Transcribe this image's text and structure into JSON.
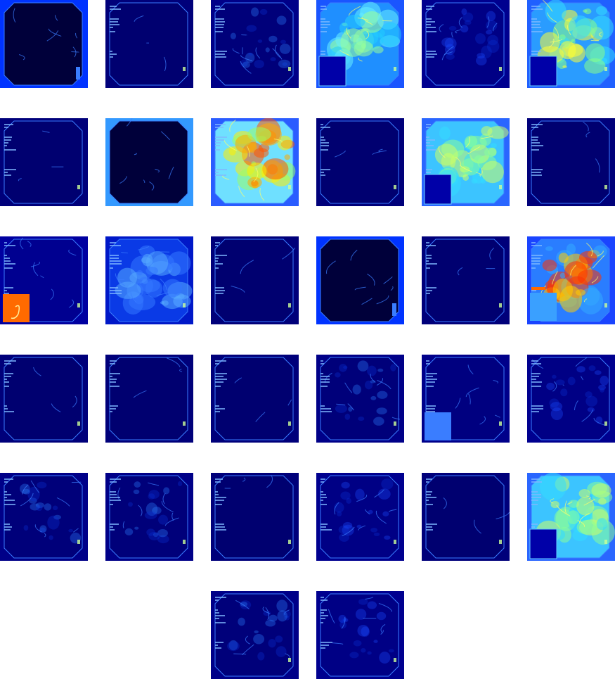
{
  "grid": {
    "rows": 6,
    "columns": 6,
    "tile_count": 32,
    "colormap": "jet"
  },
  "tiles": [
    {
      "index": 1,
      "variant": "black-frame"
    },
    {
      "index": 2,
      "variant": "dark-minimal"
    },
    {
      "index": 3,
      "variant": "dark-edges"
    },
    {
      "index": 4,
      "variant": "bright-cyan"
    },
    {
      "index": 5,
      "variant": "dark-textured"
    },
    {
      "index": 6,
      "variant": "bright-green-yellow"
    },
    {
      "index": 7,
      "variant": "dark-minimal"
    },
    {
      "index": 8,
      "variant": "black-frame-light"
    },
    {
      "index": 9,
      "variant": "hot-yellow-red"
    },
    {
      "index": 10,
      "variant": "dark-minimal"
    },
    {
      "index": 11,
      "variant": "bright-cyan-green"
    },
    {
      "index": 12,
      "variant": "dark-minimal"
    },
    {
      "index": 13,
      "variant": "dark-orange-inset"
    },
    {
      "index": 14,
      "variant": "mid-blue-textured"
    },
    {
      "index": 15,
      "variant": "dark-minimal"
    },
    {
      "index": 16,
      "variant": "black-frame"
    },
    {
      "index": 17,
      "variant": "dark-minimal"
    },
    {
      "index": 18,
      "variant": "bright-blue-hotspots"
    },
    {
      "index": 19,
      "variant": "dark-minimal"
    },
    {
      "index": 20,
      "variant": "dark-minimal"
    },
    {
      "index": 21,
      "variant": "dark-minimal"
    },
    {
      "index": 22,
      "variant": "dark-edges"
    },
    {
      "index": 23,
      "variant": "dark-blue-inset"
    },
    {
      "index": 24,
      "variant": "dark-textured"
    },
    {
      "index": 25,
      "variant": "dark-edges"
    },
    {
      "index": 26,
      "variant": "dark-edges"
    },
    {
      "index": 27,
      "variant": "dark-minimal"
    },
    {
      "index": 28,
      "variant": "dark-textured"
    },
    {
      "index": 29,
      "variant": "dark-minimal"
    },
    {
      "index": 30,
      "variant": "bright-cyan-green"
    },
    {
      "index": 31,
      "variant": "dark-edges"
    },
    {
      "index": 32,
      "variant": "dark-textured"
    }
  ],
  "colors": {
    "page_background": "#ffffff",
    "deep_blue": "#000080",
    "mid_blue": "#0000cd",
    "blue": "#0033ff",
    "cyan": "#00c8ff",
    "green": "#66ff66",
    "yellow": "#ffff00",
    "orange": "#ff6a00",
    "red": "#dd0000"
  }
}
